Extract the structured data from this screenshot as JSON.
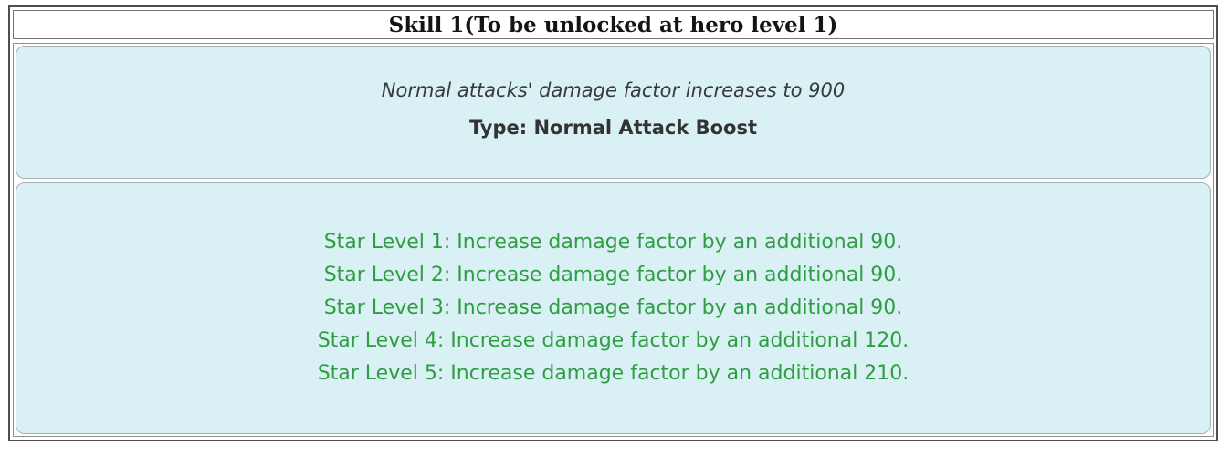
{
  "header": {
    "title": "Skill 1(To be unlocked at hero level 1)"
  },
  "skill_info": {
    "description": "Normal attacks' damage factor increases to 900",
    "type_line": "Type: Normal Attack Boost"
  },
  "star_levels": {
    "items": [
      {
        "label": "Star Level 1: Increase damage factor by an additional 90."
      },
      {
        "label": "Star Level 2: Increase damage factor by an additional 90."
      },
      {
        "label": "Star Level 3: Increase damage factor by an additional 90."
      },
      {
        "label": "Star Level 4: Increase damage factor by an additional 120."
      },
      {
        "label": "Star Level 5: Increase damage factor by an additional 210."
      }
    ]
  },
  "colors": {
    "panel_bg": "#d9f1f4",
    "panel_border": "#a4b2b5",
    "star_green": "#2f9d42",
    "outer_border": "#4e4e4e",
    "text_dark": "#3a3a3a"
  }
}
